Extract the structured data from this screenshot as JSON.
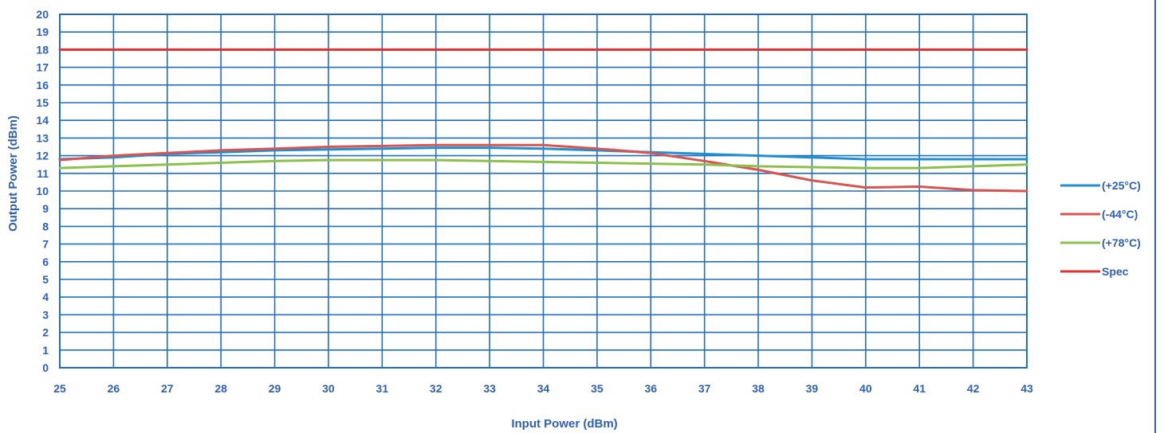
{
  "chart_data": {
    "type": "line",
    "xlabel": "Input Power (dBm)",
    "ylabel": "Output Power (dBm)",
    "xlim": [
      25,
      43
    ],
    "ylim": [
      0,
      20
    ],
    "x_ticks": [
      25,
      26,
      27,
      28,
      29,
      30,
      31,
      32,
      33,
      34,
      35,
      36,
      37,
      38,
      39,
      40,
      41,
      42,
      43
    ],
    "y_ticks": [
      0,
      1,
      2,
      3,
      4,
      5,
      6,
      7,
      8,
      9,
      10,
      11,
      12,
      13,
      14,
      15,
      16,
      17,
      18,
      19,
      20
    ],
    "grid": true,
    "legend_position": "right",
    "x": [
      25,
      26,
      27,
      28,
      29,
      30,
      31,
      32,
      33,
      34,
      35,
      36,
      37,
      38,
      39,
      40,
      41,
      42,
      43
    ],
    "series": [
      {
        "name": "(+25°C)",
        "color": "#1f8fd0",
        "values": [
          11.8,
          11.9,
          12.1,
          12.2,
          12.3,
          12.35,
          12.4,
          12.45,
          12.45,
          12.4,
          12.3,
          12.2,
          12.1,
          12.0,
          11.9,
          11.8,
          11.8,
          11.8,
          11.8
        ]
      },
      {
        "name": "(-44°C)",
        "color": "#d9534f",
        "values": [
          11.75,
          12.0,
          12.15,
          12.3,
          12.4,
          12.5,
          12.55,
          12.6,
          12.6,
          12.6,
          12.4,
          12.15,
          11.7,
          11.2,
          10.6,
          10.2,
          10.25,
          10.05,
          10.0
        ]
      },
      {
        "name": "(+78°C)",
        "color": "#8dc04a",
        "values": [
          11.3,
          11.4,
          11.5,
          11.6,
          11.7,
          11.75,
          11.75,
          11.75,
          11.7,
          11.65,
          11.6,
          11.55,
          11.5,
          11.4,
          11.35,
          11.3,
          11.3,
          11.4,
          11.5
        ]
      },
      {
        "name": "Spec",
        "color": "#e03030",
        "values": [
          18,
          18,
          18,
          18,
          18,
          18,
          18,
          18,
          18,
          18,
          18,
          18,
          18,
          18,
          18,
          18,
          18,
          18,
          18
        ]
      }
    ]
  }
}
